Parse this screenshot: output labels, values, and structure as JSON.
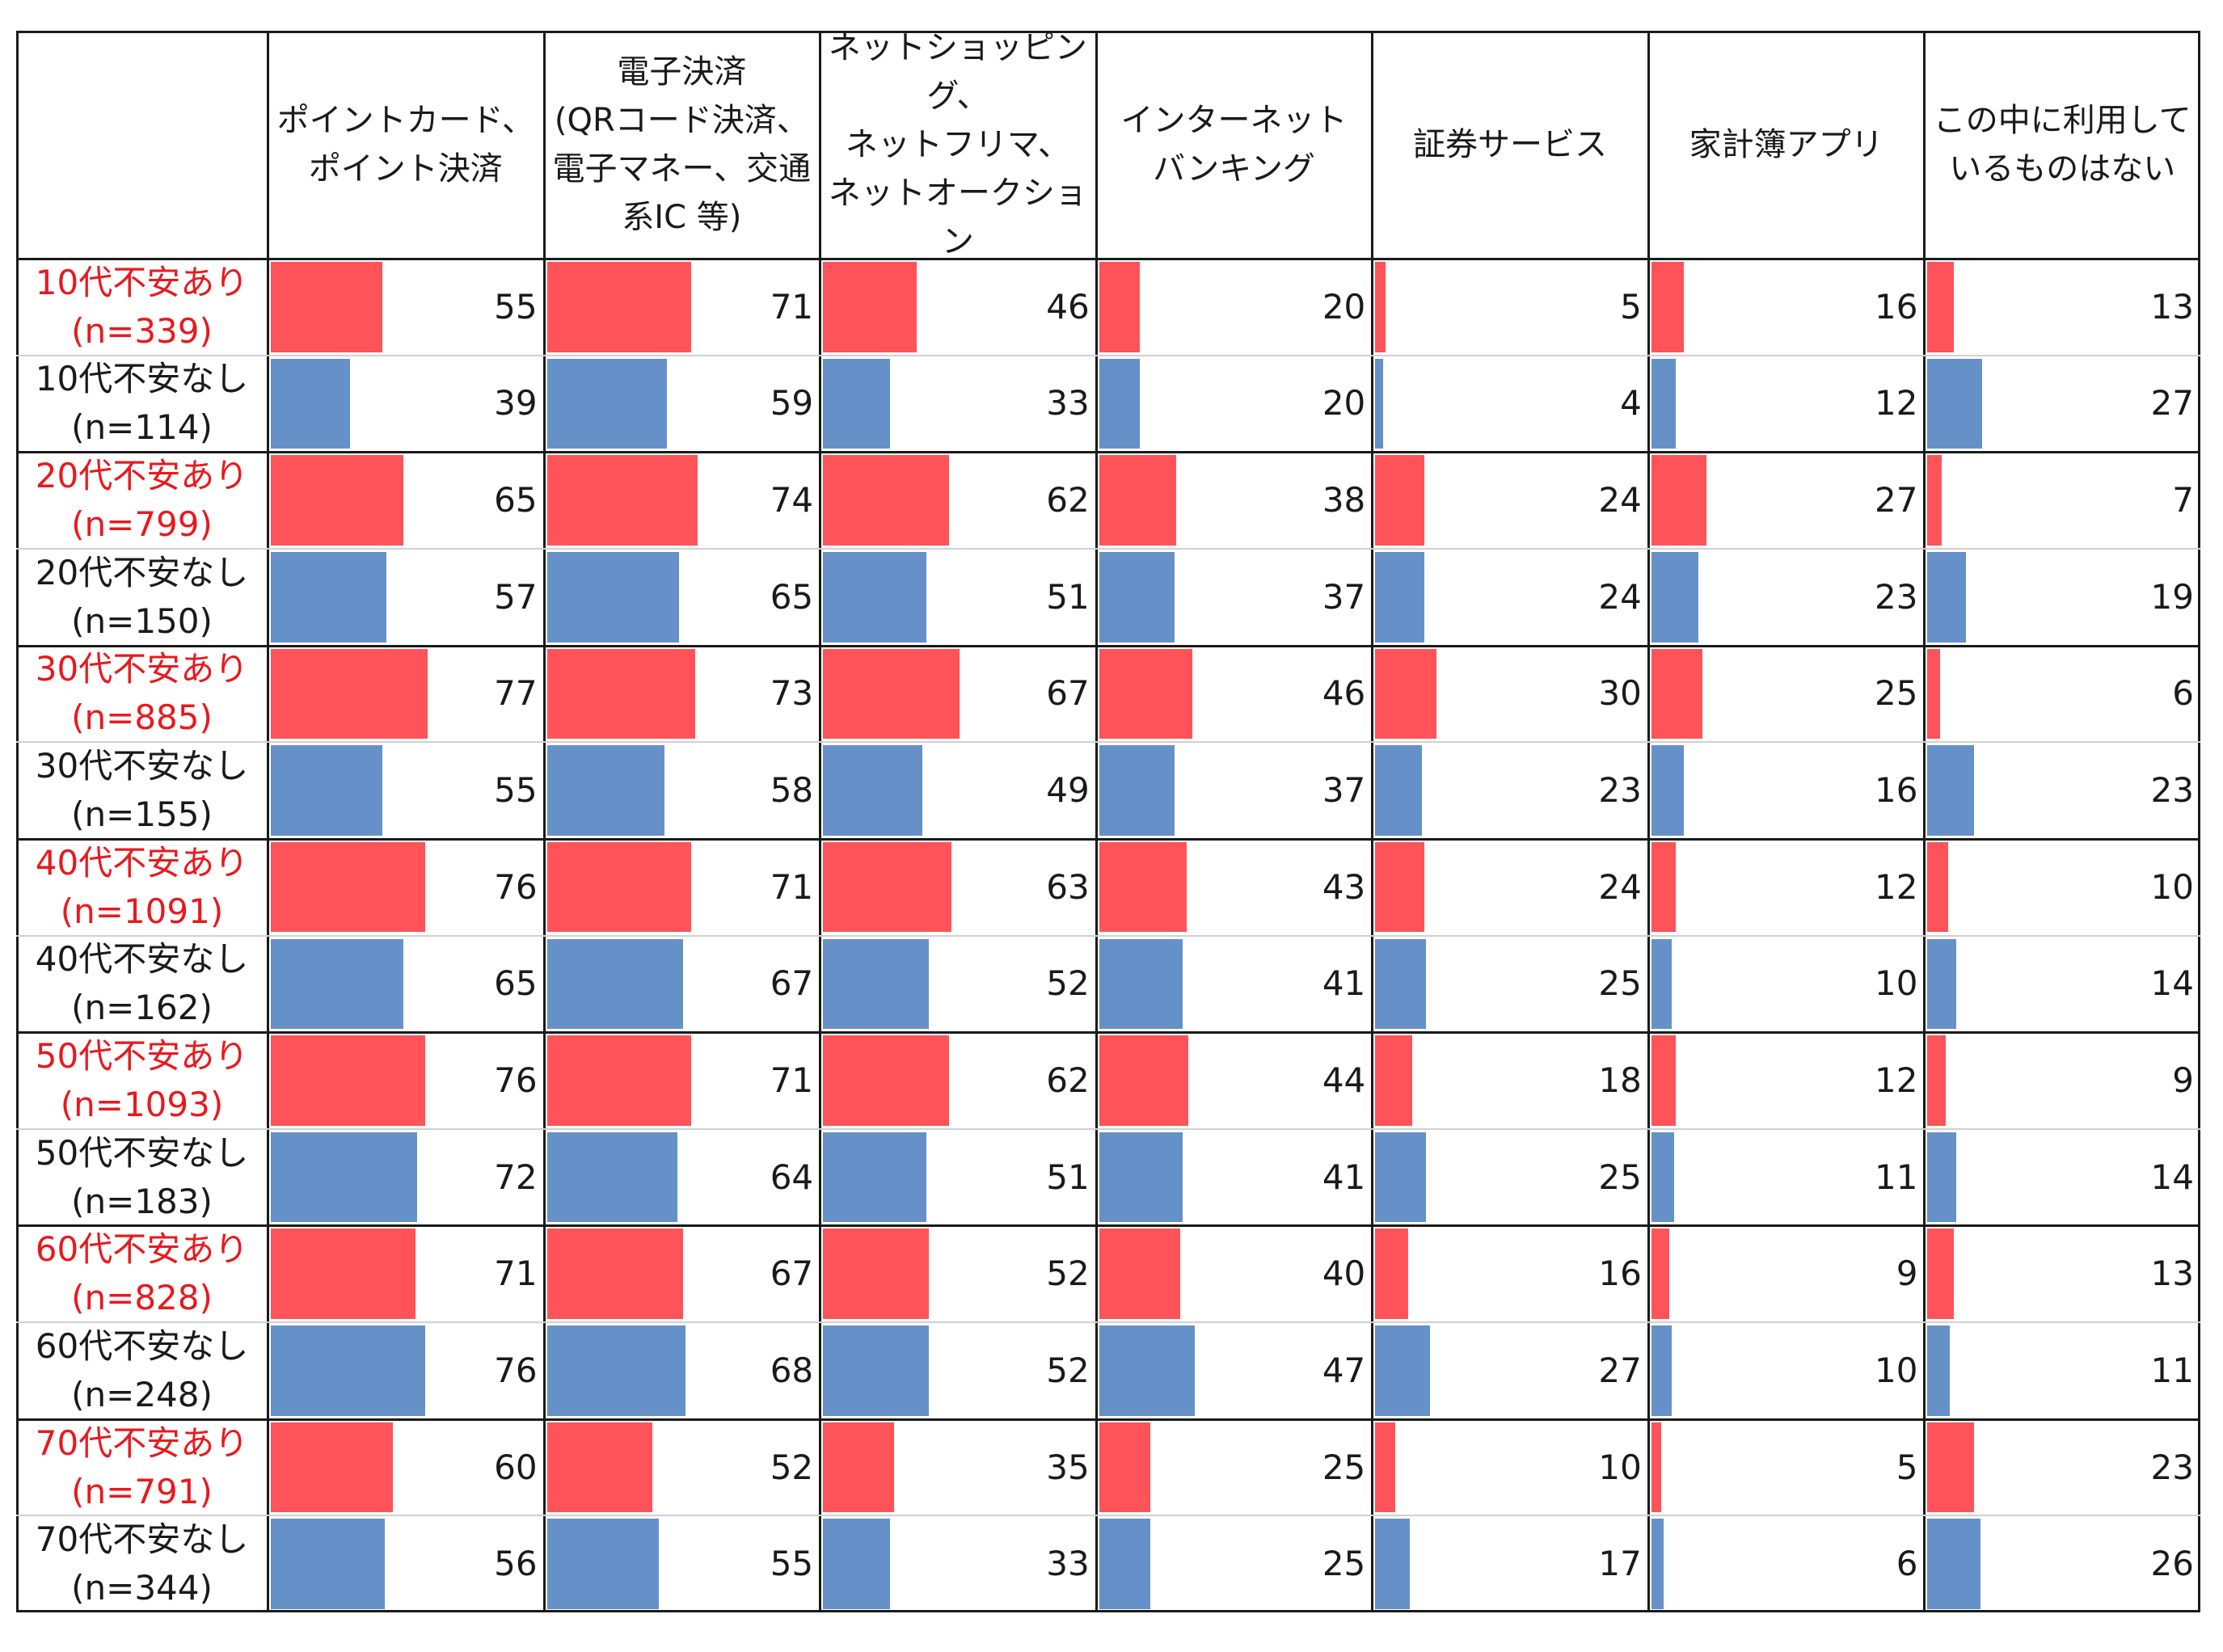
{
  "chart_data": {
    "type": "bar",
    "columns": [
      "ポイントカード、\nポイント決済",
      "電子決済\n(QRコード決済、\n電子マネー、交通\n系IC 等)",
      "ネットショッピング、\nネットフリマ、\nネットオークション",
      "インターネット\nバンキング",
      "証券サービス",
      "家計簿アプリ",
      "この中に利用して\nいるものはない"
    ],
    "rows": [
      {
        "label": "10代不安あり",
        "n": "(n=339)",
        "group": "anxious",
        "values": [
          55,
          71,
          46,
          20,
          5,
          16,
          13
        ]
      },
      {
        "label": "10代不安なし",
        "n": "(n=114)",
        "group": "calm",
        "values": [
          39,
          59,
          33,
          20,
          4,
          12,
          27
        ]
      },
      {
        "label": "20代不安あり",
        "n": "(n=799)",
        "group": "anxious",
        "values": [
          65,
          74,
          62,
          38,
          24,
          27,
          7
        ]
      },
      {
        "label": "20代不安なし",
        "n": "(n=150)",
        "group": "calm",
        "values": [
          57,
          65,
          51,
          37,
          24,
          23,
          19
        ]
      },
      {
        "label": "30代不安あり",
        "n": "(n=885)",
        "group": "anxious",
        "values": [
          77,
          73,
          67,
          46,
          30,
          25,
          6
        ]
      },
      {
        "label": "30代不安なし",
        "n": "(n=155)",
        "group": "calm",
        "values": [
          55,
          58,
          49,
          37,
          23,
          16,
          23
        ]
      },
      {
        "label": "40代不安あり",
        "n": "(n=1091)",
        "group": "anxious",
        "values": [
          76,
          71,
          63,
          43,
          24,
          12,
          10
        ]
      },
      {
        "label": "40代不安なし",
        "n": "(n=162)",
        "group": "calm",
        "values": [
          65,
          67,
          52,
          41,
          25,
          10,
          14
        ]
      },
      {
        "label": "50代不安あり",
        "n": "(n=1093)",
        "group": "anxious",
        "values": [
          76,
          71,
          62,
          44,
          18,
          12,
          9
        ]
      },
      {
        "label": "50代不安なし",
        "n": "(n=183)",
        "group": "calm",
        "values": [
          72,
          64,
          51,
          41,
          25,
          11,
          14
        ]
      },
      {
        "label": "60代不安あり",
        "n": "(n=828)",
        "group": "anxious",
        "values": [
          71,
          67,
          52,
          40,
          16,
          9,
          13
        ]
      },
      {
        "label": "60代不安なし",
        "n": "(n=248)",
        "group": "calm",
        "values": [
          76,
          68,
          52,
          47,
          27,
          10,
          11
        ]
      },
      {
        "label": "70代不安あり",
        "n": "(n=791)",
        "group": "anxious",
        "values": [
          60,
          52,
          35,
          25,
          10,
          5,
          23
        ]
      },
      {
        "label": "70代不安なし",
        "n": "(n=344)",
        "group": "calm",
        "values": [
          56,
          55,
          33,
          25,
          17,
          6,
          26
        ]
      }
    ],
    "value_max": 100,
    "colors": {
      "anxious_bar": "#fd5359",
      "calm_bar": "#6690c8",
      "anxious_label": "#e8191e"
    }
  }
}
